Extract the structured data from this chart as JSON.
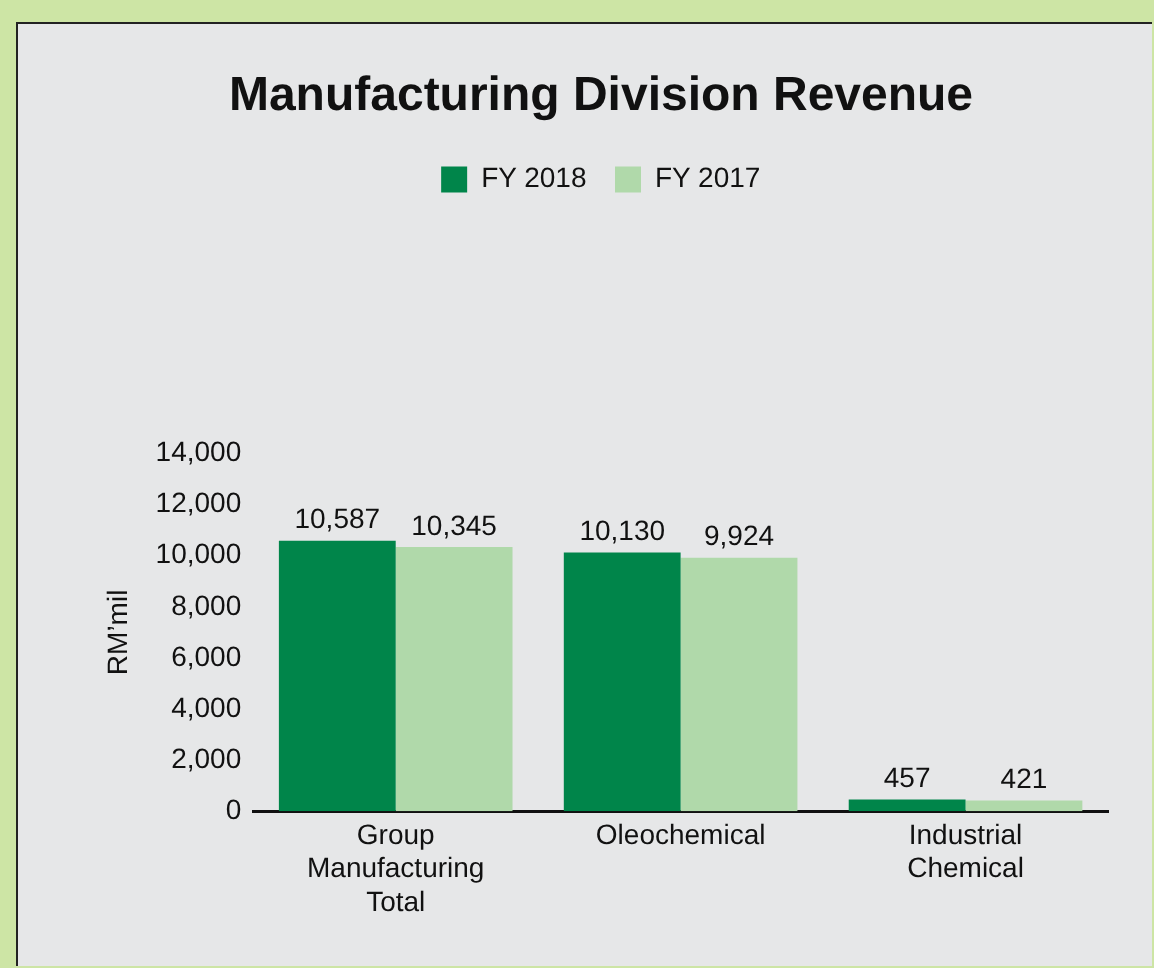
{
  "chart_data": {
    "type": "bar",
    "title": "Manufacturing Division Revenue",
    "ylabel": "RM’mil",
    "categories": [
      "Group Manufacturing Total",
      "Oleochemical",
      "Industrial Chemical"
    ],
    "series": [
      {
        "name": "FY 2018",
        "color": "#00854a",
        "values": [
          10587,
          10130,
          457
        ],
        "value_labels": [
          "10,587",
          "10,130",
          "457"
        ]
      },
      {
        "name": "FY 2017",
        "color": "#b0d9aa",
        "values": [
          10345,
          9924,
          421
        ],
        "value_labels": [
          "10,345",
          "9,924",
          "421"
        ]
      }
    ],
    "ylim": [
      0,
      14000
    ],
    "yticks": [
      0,
      {
        "value": 2000,
        "label": "2,000"
      },
      {
        "value": 4000,
        "label": "4,000"
      },
      {
        "value": 6000,
        "label": "6,000"
      },
      {
        "value": 8000,
        "label": "8,000"
      },
      {
        "value": 10000,
        "label": "10,000"
      },
      {
        "value": 12000,
        "label": "12,000"
      },
      {
        "value": 14000,
        "label": "14,000"
      }
    ],
    "grid": false,
    "legend": "top"
  }
}
